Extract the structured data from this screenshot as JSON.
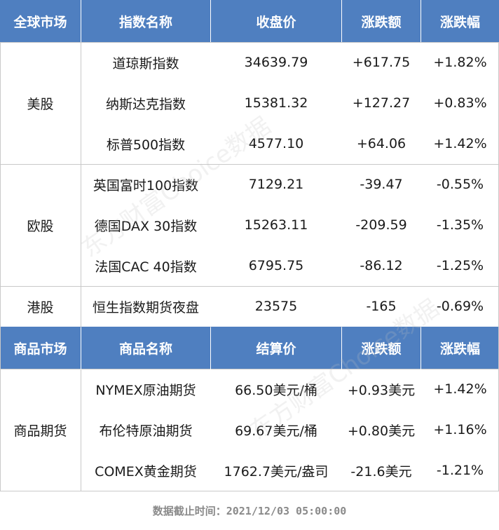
{
  "index_header": [
    "全球市场",
    "指数名称",
    "收盘价",
    "涨跌额",
    "涨跌幅"
  ],
  "markets": [
    {
      "name": "美股",
      "rows": [
        {
          "name": "道琼斯指数",
          "price": "34639.79",
          "change": "+617.75",
          "pct": "+1.82%"
        },
        {
          "name": "纳斯达克指数",
          "price": "15381.32",
          "change": "+127.27",
          "pct": "+0.83%"
        },
        {
          "name": "标普500指数",
          "price": "4577.10",
          "change": "+64.06",
          "pct": "+1.42%"
        }
      ]
    },
    {
      "name": "欧股",
      "rows": [
        {
          "name": "英国富时100指数",
          "price": "7129.21",
          "change": "-39.47",
          "pct": "-0.55%"
        },
        {
          "name": "德国DAX 30指数",
          "price": "15263.11",
          "change": "-209.59",
          "pct": "-1.35%"
        },
        {
          "name": "法国CAC 40指数",
          "price": "6795.75",
          "change": "-86.12",
          "pct": "-1.25%"
        }
      ]
    },
    {
      "name": "港股",
      "rows": [
        {
          "name": "恒生指数期货夜盘",
          "price": "23575",
          "change": "-165",
          "pct": "-0.69%"
        }
      ]
    }
  ],
  "commodity_header": [
    "商品市场",
    "商品名称",
    "结算价",
    "涨跌额",
    "涨跌幅"
  ],
  "commodities": {
    "name": "商品期货",
    "rows": [
      {
        "name": "NYMEX原油期货",
        "price": "66.50美元/桶",
        "change": "+0.93美元",
        "pct": "+1.42%"
      },
      {
        "name": "布伦特原油期货",
        "price": "69.67美元/桶",
        "change": "+0.80美元",
        "pct": "+1.16%"
      },
      {
        "name": "COMEX黄金期货",
        "price": "1762.7美元/盎司",
        "change": "-21.6美元",
        "pct": "-1.21%"
      }
    ]
  },
  "footer": "数据截止时间：2021/12/03 05:00:00",
  "watermark": "东方财富Choice数据",
  "colors": {
    "header_bg": "#4f7fc0",
    "header_text": "#ffffff",
    "grid": "#c9c9c9"
  }
}
